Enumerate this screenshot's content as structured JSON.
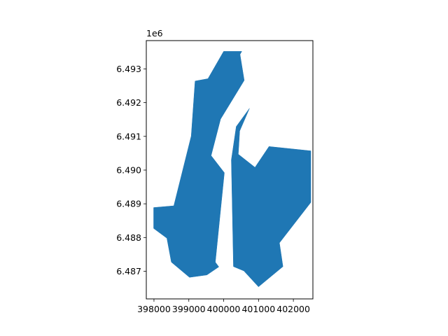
{
  "chart_data": {
    "type": "polygon-map",
    "title": "",
    "xlabel": "",
    "ylabel": "",
    "y_offset_label": "1e6",
    "xlim": [
      397780,
      402560
    ],
    "ylim": [
      6486180,
      6493840
    ],
    "x_ticks": [
      {
        "value": 398000,
        "label": "398000"
      },
      {
        "value": 399000,
        "label": "399000"
      },
      {
        "value": 400000,
        "label": "400000"
      },
      {
        "value": 401000,
        "label": "401000"
      },
      {
        "value": 402000,
        "label": "402000"
      }
    ],
    "y_ticks": [
      {
        "value": 6487000,
        "label": "6.487"
      },
      {
        "value": 6488000,
        "label": "6.488"
      },
      {
        "value": 6489000,
        "label": "6.489"
      },
      {
        "value": 6490000,
        "label": "6.490"
      },
      {
        "value": 6491000,
        "label": "6.491"
      },
      {
        "value": 6492000,
        "label": "6.492"
      },
      {
        "value": 6493000,
        "label": "6.493"
      }
    ],
    "fill_color": "#1f77b4",
    "grid": false,
    "polygons": [
      {
        "points": [
          [
            400000,
            6493520
          ],
          [
            400520,
            6493520
          ],
          [
            400470,
            6493430
          ],
          [
            400590,
            6492660
          ],
          [
            399910,
            6491510
          ],
          [
            399640,
            6490430
          ],
          [
            400020,
            6489920
          ],
          [
            399760,
            6487270
          ],
          [
            399860,
            6487130
          ],
          [
            399520,
            6486890
          ],
          [
            399020,
            6486820
          ],
          [
            398500,
            6487270
          ],
          [
            398370,
            6487980
          ],
          [
            397990,
            6488270
          ],
          [
            397990,
            6488890
          ],
          [
            398570,
            6488940
          ],
          [
            399070,
            6491010
          ],
          [
            399180,
            6492640
          ],
          [
            399550,
            6492710
          ]
        ]
      },
      {
        "points": [
          [
            400740,
            6491830
          ],
          [
            400460,
            6491160
          ],
          [
            400420,
            6490470
          ],
          [
            400900,
            6490080
          ],
          [
            401300,
            6490700
          ],
          [
            402500,
            6490570
          ],
          [
            402500,
            6489040
          ],
          [
            401600,
            6487840
          ],
          [
            401700,
            6487140
          ],
          [
            401000,
            6486540
          ],
          [
            400580,
            6487010
          ],
          [
            400280,
            6487140
          ],
          [
            400220,
            6490300
          ],
          [
            400360,
            6491290
          ]
        ]
      }
    ]
  }
}
